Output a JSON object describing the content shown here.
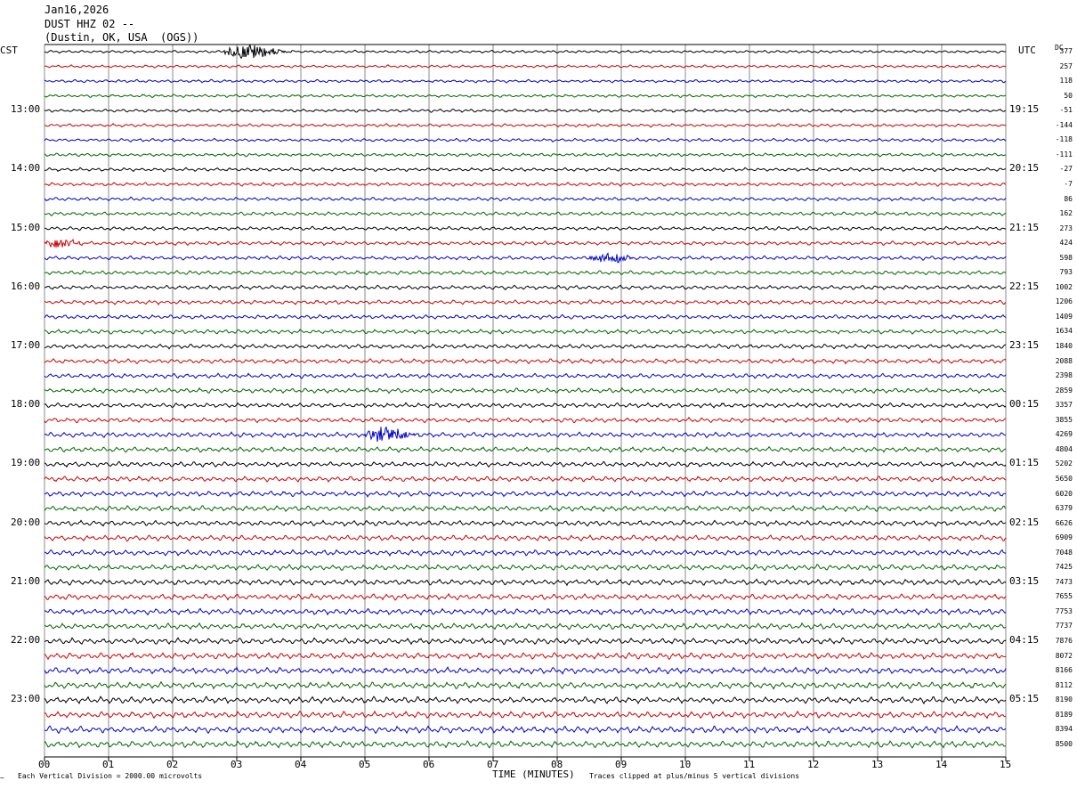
{
  "header": {
    "date": "Jan16,2026",
    "station": "DUST HHZ 02 --",
    "location": "(Dustin, OK, USA  (OGS))"
  },
  "left_timezone": "CST",
  "right_timezone": "UTC",
  "dc_label": "DC",
  "footer": {
    "scale_note": "Each Vertical Division = 2000.00 microvolts",
    "xlabel": "TIME (MINUTES)",
    "clip_note": "Traces clipped at plus/minus 5 vertical divisions"
  },
  "colors": {
    "cycle": [
      "#000000",
      "#cc0000",
      "#0000cc",
      "#006600"
    ],
    "grid": "#888888"
  },
  "chart_data": {
    "type": "line",
    "xlim": [
      0,
      15
    ],
    "x_ticks": [
      "00",
      "01",
      "02",
      "03",
      "04",
      "05",
      "06",
      "07",
      "08",
      "09",
      "10",
      "11",
      "12",
      "13",
      "14",
      "15"
    ],
    "left_hour_labels": [
      "13:00",
      "14:00",
      "15:00",
      "16:00",
      "17:00",
      "18:00",
      "19:00",
      "20:00",
      "21:00",
      "22:00",
      "23:00"
    ],
    "right_hour_labels": [
      "19:15",
      "20:15",
      "21:15",
      "22:15",
      "23:15",
      "00:15",
      "01:15",
      "02:15",
      "03:15",
      "04:15",
      "05:15"
    ],
    "dc_offsets": [
      377,
      257,
      118,
      50,
      -51,
      -144,
      -118,
      -111,
      -27,
      -7,
      86,
      162,
      273,
      424,
      598,
      793,
      1002,
      1206,
      1409,
      1634,
      1840,
      2088,
      2398,
      2859,
      3357,
      3855,
      4269,
      4804,
      5202,
      5650,
      6020,
      6379,
      6626,
      6909,
      7048,
      7425,
      7473,
      7655,
      7753,
      7737,
      7876,
      8072,
      8166,
      8112,
      8190,
      8189,
      8394,
      8500
    ],
    "events": [
      {
        "trace": 0,
        "minute_start": 2.8,
        "minute_end": 4.0,
        "amp": 8
      },
      {
        "trace": 13,
        "minute_start": 0.0,
        "minute_end": 0.8,
        "amp": 5
      },
      {
        "trace": 14,
        "minute_start": 8.5,
        "minute_end": 9.3,
        "amp": 6
      },
      {
        "trace": 26,
        "minute_start": 5.0,
        "minute_end": 6.0,
        "amp": 8
      }
    ]
  }
}
